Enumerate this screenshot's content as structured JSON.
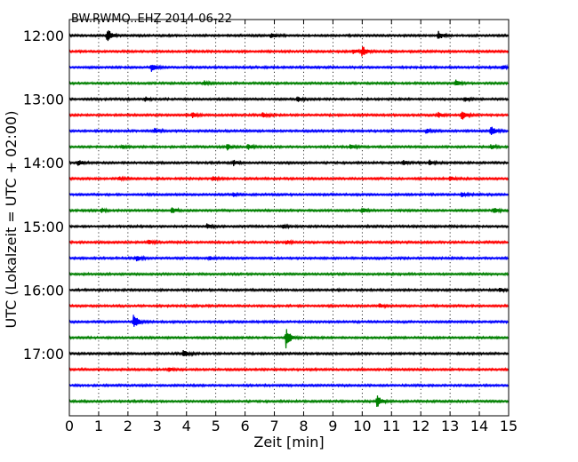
{
  "chart_data": {
    "type": "line",
    "title": "BW.RWMO..EHZ 2014-06-22",
    "xlabel": "Zeit  [min]",
    "ylabel": "UTC (Lokalzeit = UTC + 02:00)",
    "xlim": [
      0,
      15
    ],
    "x_ticks": [
      "0",
      "1",
      "2",
      "3",
      "4",
      "5",
      "6",
      "7",
      "8",
      "9",
      "10",
      "11",
      "12",
      "13",
      "14",
      "15"
    ],
    "y_ticks": [
      "12:00",
      "13:00",
      "14:00",
      "15:00",
      "16:00",
      "17:00"
    ],
    "grid": "vertical dotted lines at each minute",
    "trace_colors": [
      "#000000",
      "#ff0000",
      "#0000ff",
      "#008000"
    ],
    "traces": [
      {
        "start": "12:00",
        "events": [
          {
            "x": 1.3,
            "amp": 1.0
          },
          {
            "x": 6.9,
            "amp": 0.35
          },
          {
            "x": 12.6,
            "amp": 0.6
          }
        ]
      },
      {
        "start": "12:15",
        "events": [
          {
            "x": 10.0,
            "amp": 0.75
          },
          {
            "x": 9.7,
            "amp": 0.35
          }
        ]
      },
      {
        "start": "12:30",
        "events": [
          {
            "x": 2.8,
            "amp": 0.55
          },
          {
            "x": 14.8,
            "amp": 0.3
          }
        ]
      },
      {
        "start": "12:45",
        "events": [
          {
            "x": 4.6,
            "amp": 0.3
          },
          {
            "x": 13.2,
            "amp": 0.45
          }
        ]
      },
      {
        "start": "13:00",
        "events": [
          {
            "x": 2.6,
            "amp": 0.3
          },
          {
            "x": 7.8,
            "amp": 0.3
          },
          {
            "x": 13.5,
            "amp": 0.25
          }
        ]
      },
      {
        "start": "13:15",
        "events": [
          {
            "x": 4.2,
            "amp": 0.35
          },
          {
            "x": 6.6,
            "amp": 0.35
          },
          {
            "x": 12.6,
            "amp": 0.35
          },
          {
            "x": 13.4,
            "amp": 0.75
          }
        ]
      },
      {
        "start": "13:30",
        "events": [
          {
            "x": 2.9,
            "amp": 0.4
          },
          {
            "x": 12.2,
            "amp": 0.3
          },
          {
            "x": 14.4,
            "amp": 0.75
          }
        ]
      },
      {
        "start": "13:45",
        "events": [
          {
            "x": 1.8,
            "amp": 0.3
          },
          {
            "x": 5.4,
            "amp": 0.45
          },
          {
            "x": 6.1,
            "amp": 0.35
          },
          {
            "x": 9.6,
            "amp": 0.35
          },
          {
            "x": 14.4,
            "amp": 0.3
          }
        ]
      },
      {
        "start": "14:00",
        "events": [
          {
            "x": 0.3,
            "amp": 0.45
          },
          {
            "x": 5.6,
            "amp": 0.4
          },
          {
            "x": 11.4,
            "amp": 0.35
          },
          {
            "x": 12.3,
            "amp": 0.35
          }
        ]
      },
      {
        "start": "14:15",
        "events": [
          {
            "x": 1.7,
            "amp": 0.25
          },
          {
            "x": 4.9,
            "amp": 0.35
          },
          {
            "x": 13.0,
            "amp": 0.25
          }
        ]
      },
      {
        "start": "14:30",
        "events": [
          {
            "x": 5.6,
            "amp": 0.3
          },
          {
            "x": 13.4,
            "amp": 0.35
          }
        ]
      },
      {
        "start": "14:45",
        "events": [
          {
            "x": 1.1,
            "amp": 0.35
          },
          {
            "x": 3.5,
            "amp": 0.4
          },
          {
            "x": 10.0,
            "amp": 0.35
          },
          {
            "x": 14.5,
            "amp": 0.35
          }
        ]
      },
      {
        "start": "15:00",
        "events": [
          {
            "x": 4.7,
            "amp": 0.3
          },
          {
            "x": 7.3,
            "amp": 0.25
          }
        ]
      },
      {
        "start": "15:15",
        "events": [
          {
            "x": 2.7,
            "amp": 0.3
          },
          {
            "x": 7.4,
            "amp": 0.25
          }
        ]
      },
      {
        "start": "15:30",
        "events": [
          {
            "x": 2.3,
            "amp": 0.45
          },
          {
            "x": 4.8,
            "amp": 0.25
          }
        ]
      },
      {
        "start": "15:45",
        "events": []
      },
      {
        "start": "16:00",
        "events": [
          {
            "x": 14.7,
            "amp": 0.25
          }
        ]
      },
      {
        "start": "16:15",
        "events": [
          {
            "x": 10.6,
            "amp": 0.3
          }
        ]
      },
      {
        "start": "16:30",
        "events": [
          {
            "x": 2.2,
            "amp": 1.1
          }
        ]
      },
      {
        "start": "16:45",
        "events": [
          {
            "x": 7.4,
            "amp": 1.5
          }
        ]
      },
      {
        "start": "17:00",
        "events": [
          {
            "x": 3.9,
            "amp": 0.55
          }
        ]
      },
      {
        "start": "17:15",
        "events": [
          {
            "x": 3.4,
            "amp": 0.25
          }
        ]
      },
      {
        "start": "17:30",
        "events": []
      },
      {
        "start": "17:45",
        "events": [
          {
            "x": 10.5,
            "amp": 0.9
          }
        ]
      }
    ]
  }
}
